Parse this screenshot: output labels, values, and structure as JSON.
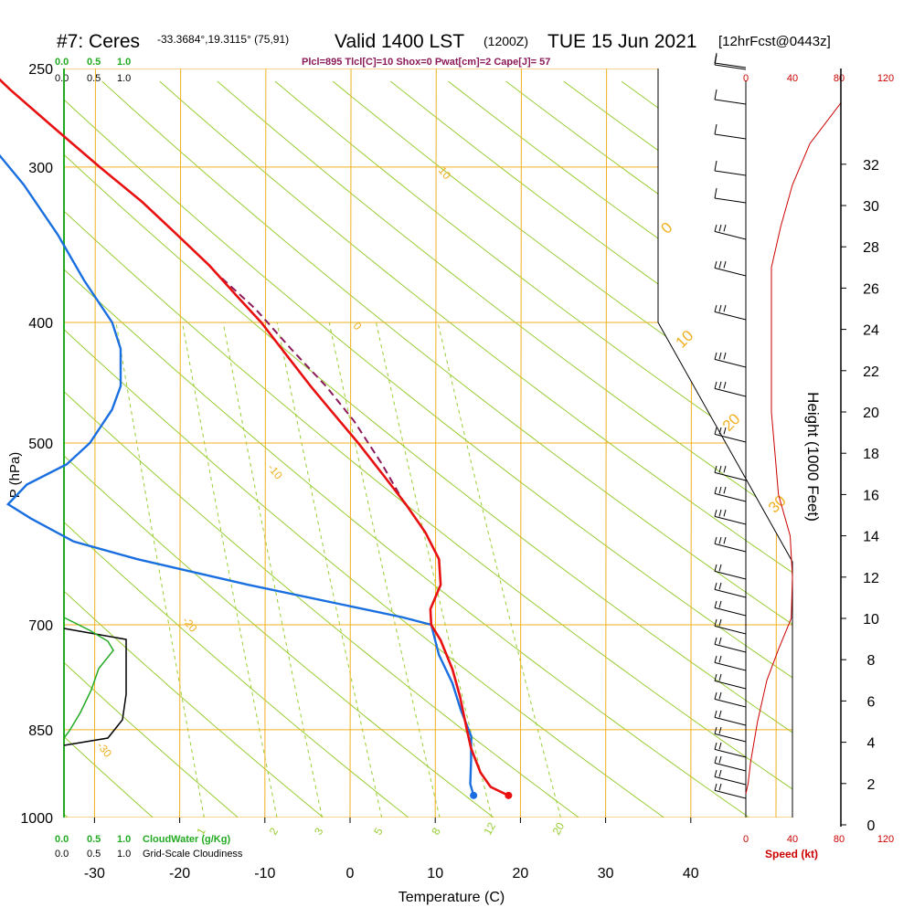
{
  "header": {
    "station": "#7: Ceres",
    "coords": "-33.3684°,19.3115° (75,91)",
    "valid": "Valid 1400 LST",
    "utc": "(1200Z)",
    "date": "TUE 15 Jun 2021",
    "forecast": "[12hrFcst@0443z]",
    "indices": "Plcl=895 Tlcl[C]=10 Shox=0 Pwat[cm]=2 Cape[J]= 57"
  },
  "colors": {
    "temperature": "#e81010",
    "dewpoint": "#1a6fe0",
    "parcel": "#8b1a5a",
    "isotherm": "#f0b020",
    "adiabat": "#99cc33",
    "cloudwater": "#22aa22",
    "speed": "#cc0000",
    "cloudiness": "#000000",
    "indices_text": "#8b1a5a"
  },
  "chart_data": {
    "type": "skew-t",
    "xlabel": "Temperature (C)",
    "ylabel": "P (hPa)",
    "right_label": "Height (1000 Feet)",
    "x_ticks": [
      "-30",
      "-20",
      "-10",
      "0",
      "10",
      "20",
      "30",
      "40"
    ],
    "x_tick_values": [
      -30,
      -20,
      -10,
      0,
      10,
      20,
      30,
      40
    ],
    "pressure_ticks": [
      "250",
      "300",
      "400",
      "500",
      "700",
      "850",
      "1000"
    ],
    "pressure_values": [
      250,
      300,
      400,
      500,
      700,
      850,
      1000
    ],
    "height_ticks": [
      "0",
      "2",
      "4",
      "6",
      "8",
      "10",
      "12",
      "14",
      "16",
      "18",
      "20",
      "22",
      "24",
      "26",
      "28",
      "30",
      "32"
    ],
    "height_values": [
      0,
      2,
      4,
      6,
      8,
      10,
      12,
      14,
      16,
      18,
      20,
      22,
      24,
      26,
      28,
      30,
      32
    ],
    "temperature": [
      {
        "p": 960,
        "t": 18.6
      },
      {
        "p": 945,
        "t": 16.5
      },
      {
        "p": 920,
        "t": 15.3
      },
      {
        "p": 880,
        "t": 14.2
      },
      {
        "p": 850,
        "t": 13.7
      },
      {
        "p": 800,
        "t": 12.9
      },
      {
        "p": 760,
        "t": 12.0
      },
      {
        "p": 720,
        "t": 10.6
      },
      {
        "p": 700,
        "t": 9.5
      },
      {
        "p": 680,
        "t": 9.4
      },
      {
        "p": 650,
        "t": 10.6
      },
      {
        "p": 620,
        "t": 10.4
      },
      {
        "p": 590,
        "t": 8.8
      },
      {
        "p": 560,
        "t": 6.5
      },
      {
        "p": 530,
        "t": 3.8
      },
      {
        "p": 500,
        "t": 0.9
      },
      {
        "p": 470,
        "t": -2.4
      },
      {
        "p": 450,
        "t": -4.7
      },
      {
        "p": 420,
        "t": -8.1
      },
      {
        "p": 400,
        "t": -10.5
      },
      {
        "p": 380,
        "t": -13.5
      },
      {
        "p": 360,
        "t": -16.6
      },
      {
        "p": 340,
        "t": -20.4
      },
      {
        "p": 320,
        "t": -24.5
      },
      {
        "p": 300,
        "t": -29.5
      },
      {
        "p": 280,
        "t": -34.6
      },
      {
        "p": 260,
        "t": -40.0
      },
      {
        "p": 250,
        "t": -42.6
      }
    ],
    "dewpoint": [
      {
        "p": 960,
        "t": 14.5
      },
      {
        "p": 940,
        "t": 14.1
      },
      {
        "p": 900,
        "t": 14.2
      },
      {
        "p": 860,
        "t": 14.2
      },
      {
        "p": 820,
        "t": 13.0
      },
      {
        "p": 780,
        "t": 12.0
      },
      {
        "p": 740,
        "t": 10.4
      },
      {
        "p": 700,
        "t": 9.5
      },
      {
        "p": 690,
        "t": 6.0
      },
      {
        "p": 650,
        "t": -12.0
      },
      {
        "p": 620,
        "t": -25.0
      },
      {
        "p": 600,
        "t": -32.5
      },
      {
        "p": 575,
        "t": -37.5
      },
      {
        "p": 560,
        "t": -40.2
      },
      {
        "p": 540,
        "t": -38.0
      },
      {
        "p": 520,
        "t": -33.3
      },
      {
        "p": 500,
        "t": -30.6
      },
      {
        "p": 470,
        "t": -28.0
      },
      {
        "p": 450,
        "t": -27.0
      },
      {
        "p": 420,
        "t": -27.0
      },
      {
        "p": 400,
        "t": -28.0
      },
      {
        "p": 370,
        "t": -31.3
      },
      {
        "p": 340,
        "t": -34.4
      },
      {
        "p": 310,
        "t": -38.4
      },
      {
        "p": 290,
        "t": -41.9
      },
      {
        "p": 275,
        "t": -47.0
      },
      {
        "p": 260,
        "t": -52.0
      },
      {
        "p": 252,
        "t": -54.0
      }
    ],
    "parcel": [
      {
        "p": 560,
        "t": 6.4
      },
      {
        "p": 520,
        "t": 3.7
      },
      {
        "p": 480,
        "t": 0.4
      },
      {
        "p": 450,
        "t": -2.9
      },
      {
        "p": 420,
        "t": -7.0
      },
      {
        "p": 390,
        "t": -11.2
      },
      {
        "p": 365,
        "t": -15.8
      }
    ],
    "isotherm_labels": [
      {
        "t": 10,
        "p": 300,
        "text": "10"
      },
      {
        "t": 0,
        "p": 400,
        "text": "0"
      },
      {
        "t": -10,
        "p": 520,
        "text": "-10"
      },
      {
        "t": -20,
        "p": 690,
        "text": "-20"
      },
      {
        "t": -30,
        "p": 870,
        "text": "-30"
      }
    ],
    "adiabat_labels": [
      {
        "text": "0",
        "p": 340
      },
      {
        "text": "10",
        "p": 420
      },
      {
        "text": "20",
        "p": 490
      },
      {
        "text": "30",
        "p": 570
      }
    ],
    "mixing_ratio_labels": [
      "1",
      "2",
      "3",
      "5",
      "8",
      "12",
      "20"
    ],
    "wind_speed_ticks": [
      "0",
      "40",
      "80",
      "120"
    ],
    "wind_speed_axis_label": "Speed (kt)",
    "wind_speed_profile": [
      {
        "h": 1.5,
        "s": 0
      },
      {
        "h": 2.0,
        "s": 2
      },
      {
        "h": 3.0,
        "s": 4
      },
      {
        "h": 5.0,
        "s": 10
      },
      {
        "h": 7.0,
        "s": 18
      },
      {
        "h": 8.5,
        "s": 28
      },
      {
        "h": 10.0,
        "s": 39
      },
      {
        "h": 12.0,
        "s": 40
      },
      {
        "h": 14.0,
        "s": 38
      },
      {
        "h": 16.0,
        "s": 28
      },
      {
        "h": 18.0,
        "s": 25
      },
      {
        "h": 20.0,
        "s": 22
      },
      {
        "h": 24.0,
        "s": 22
      },
      {
        "h": 27.0,
        "s": 22
      },
      {
        "h": 29.0,
        "s": 30
      },
      {
        "h": 31.0,
        "s": 40
      },
      {
        "h": 33.0,
        "s": 55
      },
      {
        "h": 35.0,
        "s": 82
      }
    ],
    "cloudwater_axis": {
      "ticks": [
        "0.0",
        "0.5",
        "1.0"
      ],
      "label": "CloudWater (g/Kg)"
    },
    "cloudiness_axis": {
      "ticks": [
        "0.0",
        "0.5",
        "1.0"
      ],
      "label": "Grid-Scale Cloudiness"
    }
  }
}
